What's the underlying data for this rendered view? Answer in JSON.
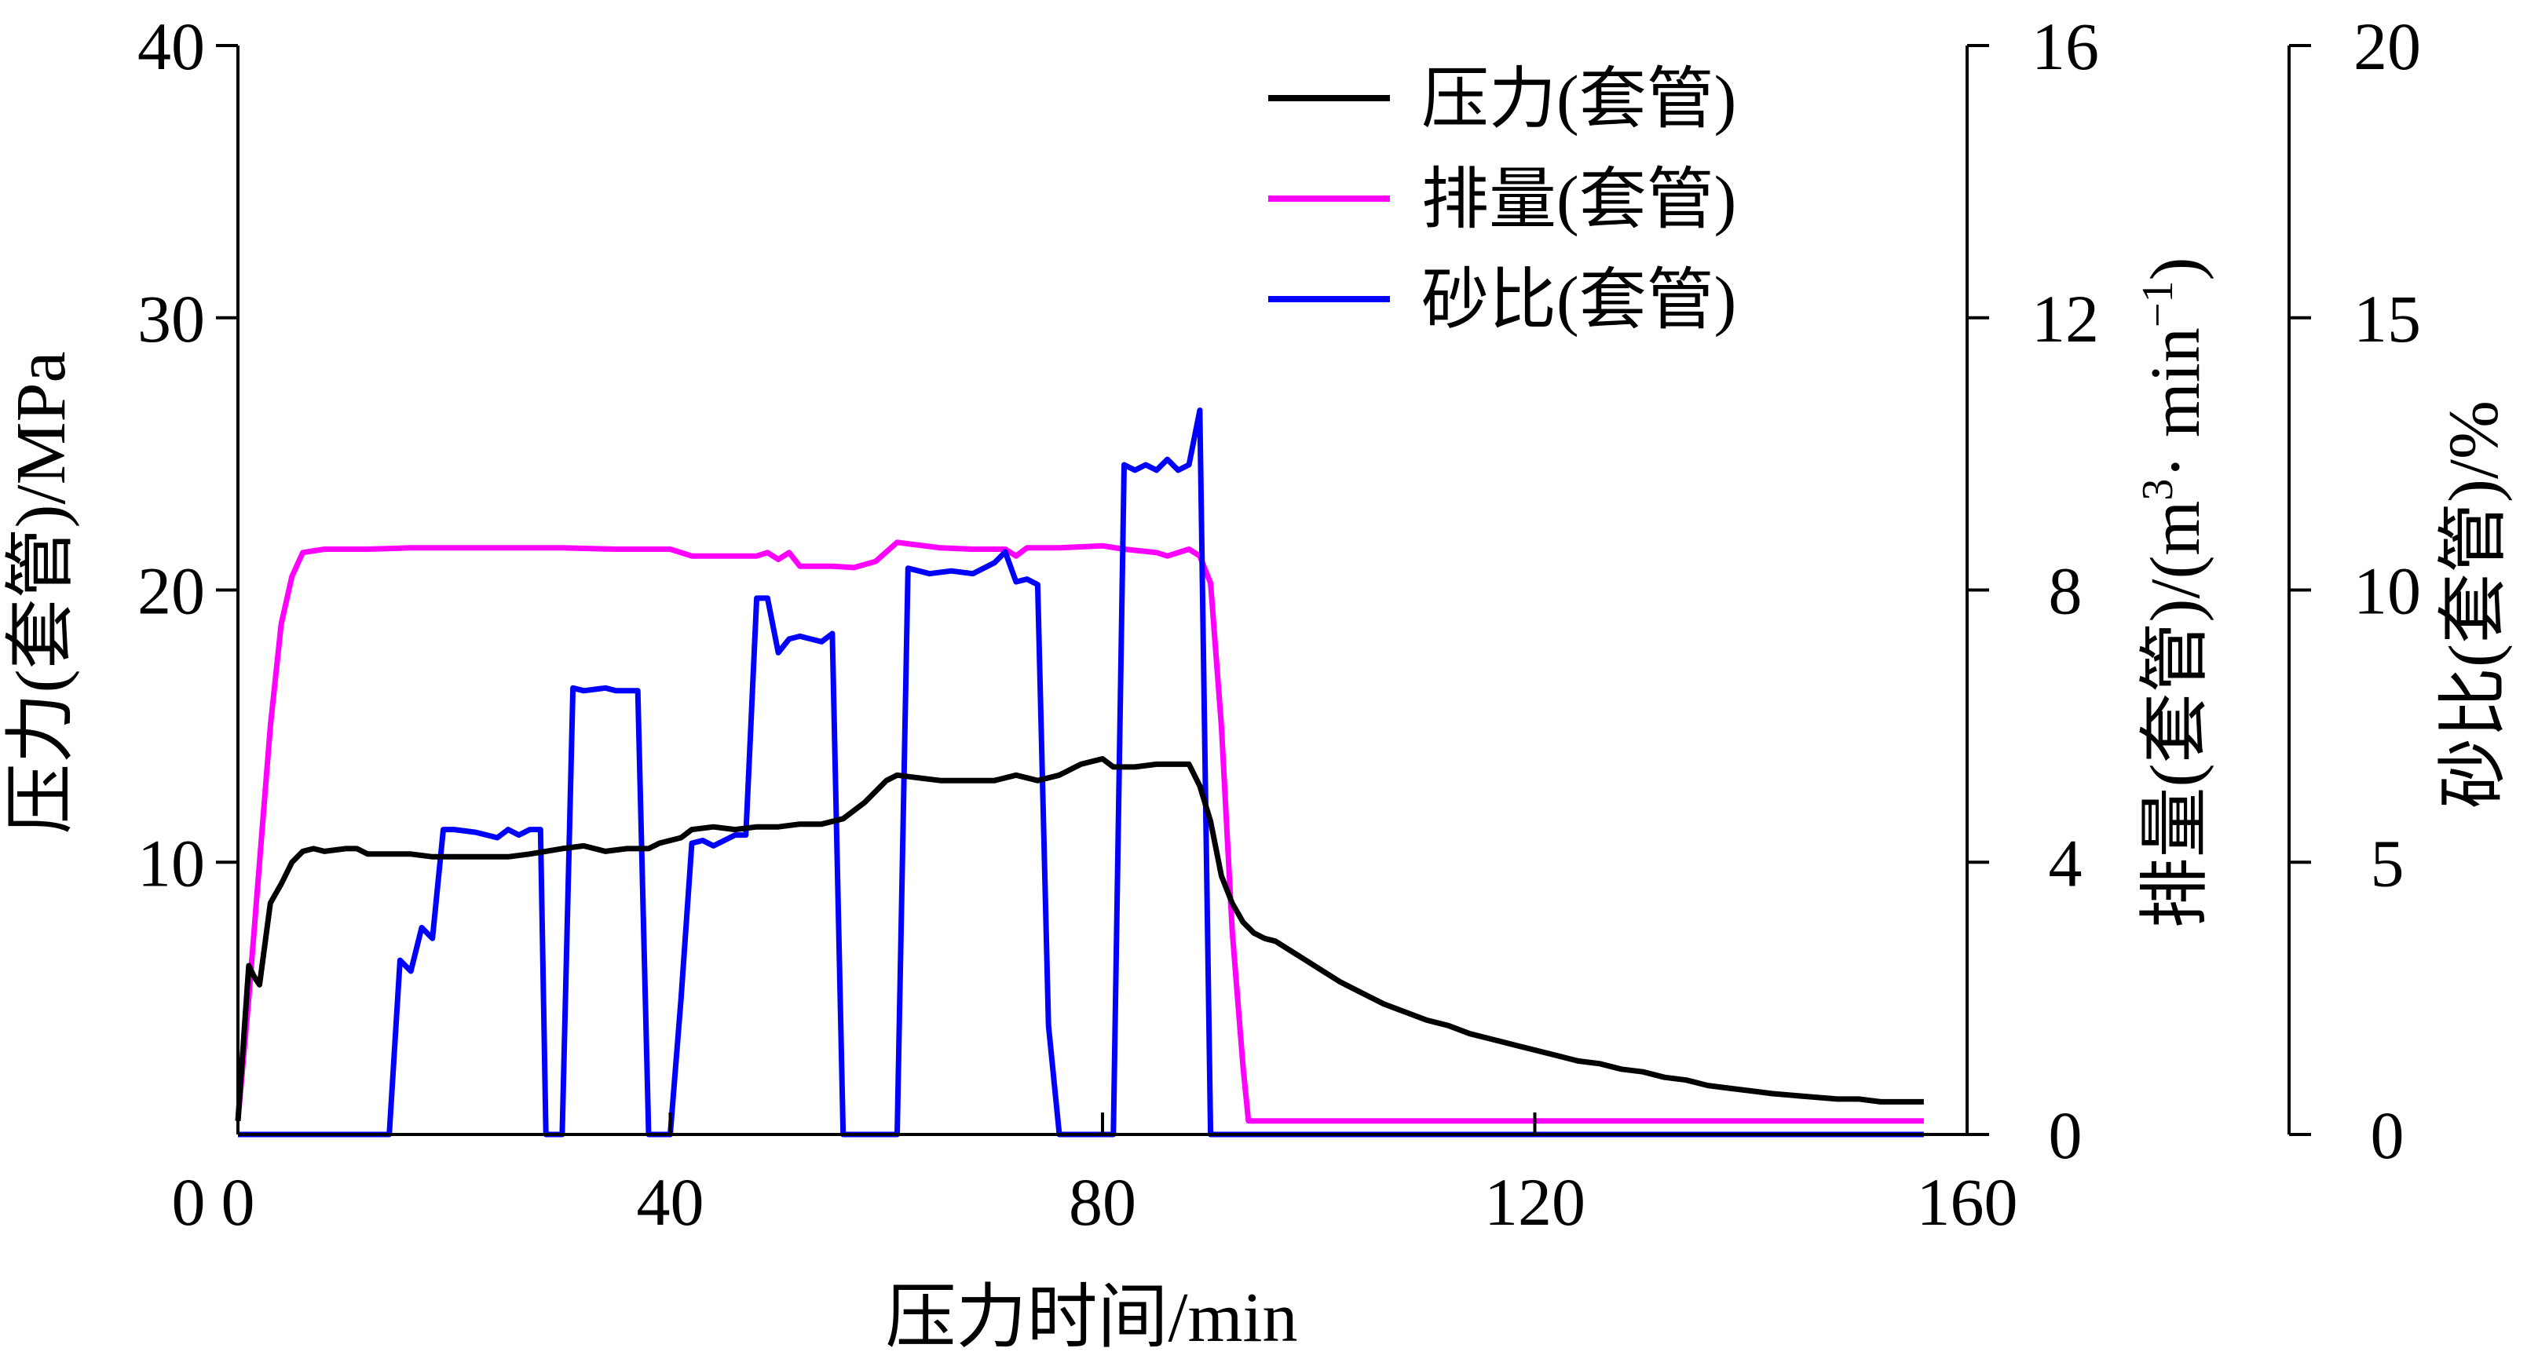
{
  "chart_data": {
    "type": "line",
    "title": "",
    "xlabel": "压力时间/min",
    "x_ticks": [
      "0",
      "40",
      "80",
      "120",
      "160"
    ],
    "xlim": [
      0,
      160
    ],
    "y_axes": [
      {
        "id": "pressure",
        "label": "压力(套管)/MPa",
        "ylim": [
          0,
          40
        ],
        "ticks": [
          "10",
          "20",
          "30",
          "40"
        ],
        "zero_label": "0"
      },
      {
        "id": "rate",
        "label_prefix": "排量(套管)/(m",
        "label_sup1": "3",
        "label_mid": "· min",
        "label_sup2": "−1",
        "label_suffix": ")",
        "ylim": [
          0,
          16
        ],
        "ticks": [
          "0",
          "4",
          "8",
          "12",
          "16"
        ]
      },
      {
        "id": "sand",
        "label": "砂比(套管)/%",
        "ylim": [
          0,
          20
        ],
        "ticks": [
          "0",
          "5",
          "10",
          "15",
          "20"
        ]
      }
    ],
    "legend": {
      "placement": "top-right"
    },
    "series": [
      {
        "name": "压力(套管)",
        "axis": "pressure",
        "color": "#000000",
        "points": [
          [
            0,
            0.5
          ],
          [
            1,
            6.2
          ],
          [
            1.5,
            5.8
          ],
          [
            2,
            5.5
          ],
          [
            2.5,
            7
          ],
          [
            3,
            8.5
          ],
          [
            4,
            9.2
          ],
          [
            5,
            10
          ],
          [
            6,
            10.4
          ],
          [
            7,
            10.5
          ],
          [
            8,
            10.4
          ],
          [
            10,
            10.5
          ],
          [
            11,
            10.5
          ],
          [
            12,
            10.3
          ],
          [
            16,
            10.3
          ],
          [
            18,
            10.2
          ],
          [
            20,
            10.2
          ],
          [
            25,
            10.2
          ],
          [
            27,
            10.3
          ],
          [
            30,
            10.5
          ],
          [
            32,
            10.6
          ],
          [
            34,
            10.4
          ],
          [
            36,
            10.5
          ],
          [
            38,
            10.5
          ],
          [
            39,
            10.7
          ],
          [
            41,
            10.9
          ],
          [
            42,
            11.2
          ],
          [
            44,
            11.3
          ],
          [
            46,
            11.2
          ],
          [
            48,
            11.3
          ],
          [
            50,
            11.3
          ],
          [
            52,
            11.4
          ],
          [
            54,
            11.4
          ],
          [
            56,
            11.6
          ],
          [
            58,
            12.2
          ],
          [
            60,
            13
          ],
          [
            61,
            13.2
          ],
          [
            63,
            13.1
          ],
          [
            65,
            13
          ],
          [
            70,
            13
          ],
          [
            72,
            13.2
          ],
          [
            74,
            13
          ],
          [
            76,
            13.2
          ],
          [
            78,
            13.6
          ],
          [
            80,
            13.8
          ],
          [
            81,
            13.5
          ],
          [
            83,
            13.5
          ],
          [
            85,
            13.6
          ],
          [
            88,
            13.6
          ],
          [
            89,
            12.8
          ],
          [
            90,
            11.5
          ],
          [
            91,
            9.5
          ],
          [
            92,
            8.5
          ],
          [
            93,
            7.8
          ],
          [
            94,
            7.4
          ],
          [
            95,
            7.2
          ],
          [
            96,
            7.1
          ],
          [
            98,
            6.6
          ],
          [
            100,
            6.1
          ],
          [
            102,
            5.6
          ],
          [
            104,
            5.2
          ],
          [
            106,
            4.8
          ],
          [
            108,
            4.5
          ],
          [
            110,
            4.2
          ],
          [
            112,
            4
          ],
          [
            114,
            3.7
          ],
          [
            116,
            3.5
          ],
          [
            118,
            3.3
          ],
          [
            120,
            3.1
          ],
          [
            122,
            2.9
          ],
          [
            124,
            2.7
          ],
          [
            126,
            2.6
          ],
          [
            128,
            2.4
          ],
          [
            130,
            2.3
          ],
          [
            132,
            2.1
          ],
          [
            134,
            2
          ],
          [
            136,
            1.8
          ],
          [
            138,
            1.7
          ],
          [
            140,
            1.6
          ],
          [
            142,
            1.5
          ],
          [
            145,
            1.4
          ],
          [
            148,
            1.3
          ],
          [
            150,
            1.3
          ],
          [
            152,
            1.2
          ],
          [
            156,
            1.2
          ]
        ]
      },
      {
        "name": "排量(套管)",
        "axis": "rate",
        "color": "#ff00ff",
        "points": [
          [
            0,
            0.2
          ],
          [
            1,
            2
          ],
          [
            2,
            4
          ],
          [
            3,
            6
          ],
          [
            4,
            7.5
          ],
          [
            5,
            8.2
          ],
          [
            6,
            8.55
          ],
          [
            8,
            8.6
          ],
          [
            12,
            8.6
          ],
          [
            16,
            8.62
          ],
          [
            20,
            8.62
          ],
          [
            25,
            8.62
          ],
          [
            30,
            8.62
          ],
          [
            35,
            8.6
          ],
          [
            40,
            8.6
          ],
          [
            42,
            8.5
          ],
          [
            45,
            8.5
          ],
          [
            48,
            8.5
          ],
          [
            49,
            8.55
          ],
          [
            50,
            8.45
          ],
          [
            51,
            8.55
          ],
          [
            52,
            8.35
          ],
          [
            55,
            8.35
          ],
          [
            57,
            8.33
          ],
          [
            59,
            8.42
          ],
          [
            61,
            8.7
          ],
          [
            62,
            8.68
          ],
          [
            65,
            8.62
          ],
          [
            68,
            8.6
          ],
          [
            71,
            8.6
          ],
          [
            72,
            8.5
          ],
          [
            73,
            8.62
          ],
          [
            76,
            8.62
          ],
          [
            80,
            8.65
          ],
          [
            82,
            8.6
          ],
          [
            85,
            8.55
          ],
          [
            86,
            8.5
          ],
          [
            88,
            8.6
          ],
          [
            89,
            8.5
          ],
          [
            90,
            8.1
          ],
          [
            91,
            6
          ],
          [
            92,
            3
          ],
          [
            93,
            1
          ],
          [
            93.5,
            0.2
          ],
          [
            95,
            0.2
          ],
          [
            100,
            0.2
          ],
          [
            120,
            0.2
          ],
          [
            140,
            0.2
          ],
          [
            156,
            0.2
          ]
        ]
      },
      {
        "name": "砂比(套管)",
        "axis": "sand",
        "color": "#0000ff",
        "points": [
          [
            0,
            0
          ],
          [
            14,
            0
          ],
          [
            15,
            3.2
          ],
          [
            16,
            3
          ],
          [
            17,
            3.8
          ],
          [
            18,
            3.6
          ],
          [
            19,
            5.6
          ],
          [
            20,
            5.6
          ],
          [
            22,
            5.55
          ],
          [
            24,
            5.45
          ],
          [
            25,
            5.6
          ],
          [
            26,
            5.5
          ],
          [
            27,
            5.6
          ],
          [
            28,
            5.6
          ],
          [
            28.5,
            0
          ],
          [
            29,
            0
          ],
          [
            30,
            0
          ],
          [
            31,
            8.2
          ],
          [
            32,
            8.15
          ],
          [
            34,
            8.2
          ],
          [
            35,
            8.15
          ],
          [
            36,
            8.15
          ],
          [
            37,
            8.15
          ],
          [
            38,
            0
          ],
          [
            40,
            0
          ],
          [
            41,
            2.5
          ],
          [
            42,
            5.35
          ],
          [
            43,
            5.4
          ],
          [
            44,
            5.3
          ],
          [
            45,
            5.4
          ],
          [
            46,
            5.5
          ],
          [
            47,
            5.5
          ],
          [
            48,
            9.85
          ],
          [
            49,
            9.85
          ],
          [
            50,
            8.85
          ],
          [
            51,
            9.1
          ],
          [
            52,
            9.15
          ],
          [
            53,
            9.1
          ],
          [
            54,
            9.05
          ],
          [
            55,
            9.2
          ],
          [
            56,
            0
          ],
          [
            58,
            0
          ],
          [
            60,
            0
          ],
          [
            61,
            0
          ],
          [
            62,
            10.4
          ],
          [
            63,
            10.35
          ],
          [
            64,
            10.3
          ],
          [
            66,
            10.35
          ],
          [
            68,
            10.3
          ],
          [
            69,
            10.4
          ],
          [
            70,
            10.5
          ],
          [
            71,
            10.7
          ],
          [
            72,
            10.15
          ],
          [
            73,
            10.2
          ],
          [
            74,
            10.1
          ],
          [
            75,
            2
          ],
          [
            76,
            0
          ],
          [
            78,
            0
          ],
          [
            80,
            0
          ],
          [
            81,
            0
          ],
          [
            82,
            12.3
          ],
          [
            83,
            12.2
          ],
          [
            84,
            12.3
          ],
          [
            85,
            12.2
          ],
          [
            86,
            12.4
          ],
          [
            87,
            12.2
          ],
          [
            88,
            12.3
          ],
          [
            89,
            13.3
          ],
          [
            90,
            0
          ],
          [
            95,
            0
          ],
          [
            100,
            0
          ],
          [
            120,
            0
          ],
          [
            140,
            0
          ],
          [
            156,
            0
          ]
        ]
      }
    ]
  }
}
